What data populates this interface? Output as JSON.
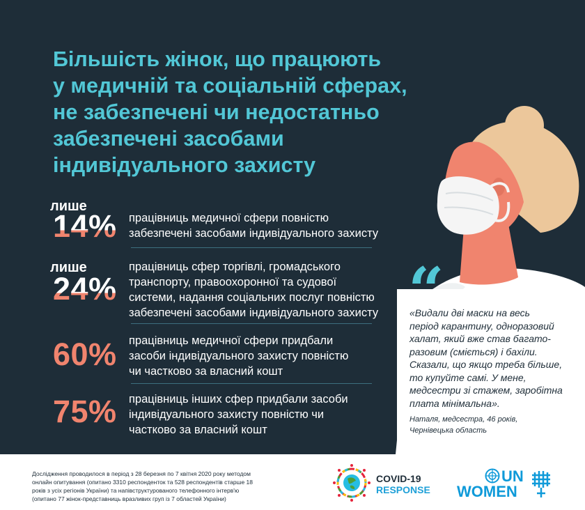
{
  "headline": {
    "lines": [
      "Більшість жінок, що працюють",
      "у медичній та соціальній сферах,",
      "не забезпечені чи недостатньо",
      "забезпечені засобами",
      "індивідуального захисту"
    ]
  },
  "stats": [
    {
      "prefix": "лише",
      "value": "14%",
      "desc": [
        "працівниць медичної сфери повністю",
        "забезпечені засобами індивідуального захисту"
      ]
    },
    {
      "prefix": "лише",
      "value": "24%",
      "desc": [
        "працівниць сфер торгівлі, громадського",
        "транспорту, правоохоронної та судової",
        "системи, надання соціальних послуг повністю",
        "забезпечені засобами індивідуального захисту"
      ]
    },
    {
      "prefix": "",
      "value": "60%",
      "desc": [
        "працівниць медичної сфери придбали",
        "засоби індивідуального захисту повністю",
        "чи частково за власний кошт"
      ]
    },
    {
      "prefix": "",
      "value": "75%",
      "desc": [
        "працівниць інших сфер придбали засоби",
        "індивідуального захисту повністю чи",
        "частково за власний кошт"
      ]
    }
  ],
  "quote": {
    "mark": "“",
    "lines": [
      "«Видали дві маски на весь",
      "період карантину, одноразовий",
      "халат, який вже став багато-",
      "разовим (сміється) і бахіли.",
      "Сказали, що якщо треба більше,",
      "то купуйте самі. У мене,",
      "медсестри зі стажем, заробітна",
      "плата мінімальна»."
    ],
    "attribution": [
      "Наталя, медсестра, 46 років,",
      "Чернівецька область"
    ]
  },
  "footer": {
    "note": [
      "Дослідження проводилося в період з 28 березня по 7 квітня 2020 року методом",
      "онлайн опитування (опитано 3310 респонденток та 528 респондентів старше 18",
      "років з усіх регіонів України) та напівструктурованого телефонного інтерв'ю",
      "(опитано 77 жінок-представниць вразливих груп із 7 областей України)"
    ],
    "covid_logo": {
      "line1": "COVID-19",
      "line2": "RESPONSE"
    },
    "unwomen_logo": {
      "line1": "UN",
      "line2": "WOMEN"
    }
  },
  "colors": {
    "background": "#1e2d38",
    "accent_teal": "#52c7d6",
    "accent_salmon": "#f0846e",
    "hair": "#ecc79b",
    "brand_blue": "#0f9ad9"
  },
  "icons": [
    "woman-with-mask-illustration",
    "quote-icon",
    "sdg-wheel-icon",
    "un-emblem-icon"
  ]
}
